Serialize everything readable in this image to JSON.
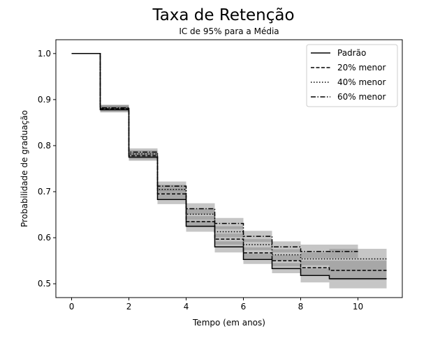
{
  "chart_data": {
    "type": "line",
    "step": "post",
    "title": "Taxa de Retenção",
    "subtitle": "IC de 95% para a Média",
    "xlabel": "Tempo (em anos)",
    "ylabel": "Probabilidade de graduação",
    "xlim": [
      -0.55,
      11.55
    ],
    "ylim": [
      0.47,
      1.03
    ],
    "xticks": [
      0,
      2,
      4,
      6,
      8,
      10
    ],
    "yticks": [
      0.5,
      0.6,
      0.7,
      0.8,
      0.9,
      1.0
    ],
    "ytick_labels": [
      "0.5",
      "0.6",
      "0.7",
      "0.8",
      "0.9",
      "1.0"
    ],
    "grid": false,
    "legend_position": "top-right",
    "ci_color": "#808080",
    "series": [
      {
        "name": "Padrão",
        "linestyle": "solid",
        "x": [
          0,
          1,
          2,
          3,
          4,
          5,
          6,
          7,
          8,
          9,
          11
        ],
        "y": [
          1.0,
          0.878,
          0.775,
          0.683,
          0.625,
          0.58,
          0.553,
          0.533,
          0.518,
          0.511,
          0.511
        ],
        "ci_lower": [
          1.0,
          0.872,
          0.767,
          0.673,
          0.613,
          0.568,
          0.543,
          0.523,
          0.503,
          0.49,
          0.49
        ],
        "ci_upper": [
          1.0,
          0.885,
          0.783,
          0.694,
          0.637,
          0.592,
          0.565,
          0.545,
          0.533,
          0.532,
          0.532
        ]
      },
      {
        "name": "20% menor",
        "linestyle": "dashed",
        "x": [
          0,
          1,
          2,
          3,
          4,
          5,
          6,
          7,
          8,
          9,
          11
        ],
        "y": [
          1.0,
          0.88,
          0.778,
          0.695,
          0.635,
          0.597,
          0.567,
          0.55,
          0.535,
          0.529,
          0.529
        ],
        "ci_lower": [
          1.0,
          0.874,
          0.77,
          0.685,
          0.623,
          0.585,
          0.555,
          0.538,
          0.52,
          0.508,
          0.508
        ],
        "ci_upper": [
          1.0,
          0.887,
          0.786,
          0.705,
          0.647,
          0.609,
          0.579,
          0.562,
          0.55,
          0.55,
          0.55
        ]
      },
      {
        "name": "40% menor",
        "linestyle": "dotted",
        "x": [
          0,
          1,
          2,
          3,
          4,
          5,
          6,
          7,
          8,
          9,
          11
        ],
        "y": [
          1.0,
          0.881,
          0.782,
          0.705,
          0.651,
          0.613,
          0.585,
          0.563,
          0.554,
          0.554,
          0.554
        ],
        "ci_lower": [
          1.0,
          0.875,
          0.774,
          0.695,
          0.639,
          0.601,
          0.573,
          0.551,
          0.54,
          0.532,
          0.532
        ],
        "ci_upper": [
          1.0,
          0.888,
          0.79,
          0.715,
          0.663,
          0.625,
          0.597,
          0.575,
          0.568,
          0.576,
          0.576
        ]
      },
      {
        "name": "60% menor",
        "linestyle": "dashdot",
        "x": [
          0,
          1,
          2,
          3,
          4,
          5,
          6,
          7,
          8,
          9,
          10
        ],
        "y": [
          1.0,
          0.882,
          0.786,
          0.712,
          0.663,
          0.631,
          0.603,
          0.58,
          0.57,
          0.57,
          0.57
        ],
        "ci_lower": [
          1.0,
          0.876,
          0.778,
          0.702,
          0.651,
          0.619,
          0.591,
          0.568,
          0.556,
          0.556,
          0.556
        ],
        "ci_upper": [
          1.0,
          0.889,
          0.794,
          0.722,
          0.675,
          0.643,
          0.615,
          0.592,
          0.585,
          0.585,
          0.585
        ]
      }
    ]
  }
}
